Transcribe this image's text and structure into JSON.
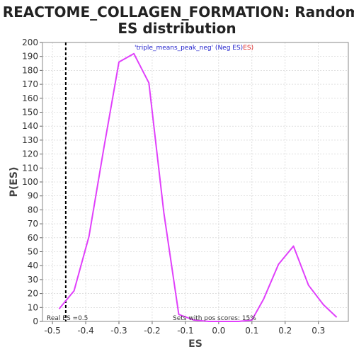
{
  "chart_data": {
    "type": "line",
    "title_lines": [
      "REACTOME_COLLAGEN_FORMATION: Random",
      "ES distribution"
    ],
    "xlabel": "ES",
    "ylabel": "P(ES)",
    "xlim": [
      -0.53,
      0.39
    ],
    "ylim": [
      0,
      200
    ],
    "x_ticks": [
      -0.5,
      -0.4,
      -0.3,
      -0.2,
      -0.1,
      0.0,
      0.1,
      0.2,
      0.3
    ],
    "x_tick_labels": [
      "-0.5",
      "-0.4",
      "-0.3",
      "-0.2",
      "-0.1",
      "0.0",
      "0.1",
      "0.2",
      "0.3"
    ],
    "y_ticks": [
      0,
      10,
      20,
      30,
      40,
      50,
      60,
      70,
      80,
      90,
      100,
      110,
      120,
      130,
      140,
      150,
      160,
      170,
      180,
      190,
      200
    ],
    "grid": true,
    "series": [
      {
        "color": "#e040fb",
        "x": [
          -0.48,
          -0.435,
          -0.39,
          -0.345,
          -0.3,
          -0.255,
          -0.21,
          -0.165,
          -0.12,
          -0.075,
          -0.03,
          0.015,
          0.06,
          0.1,
          0.135,
          0.18,
          0.225,
          0.27,
          0.315,
          0.355
        ],
        "y": [
          9,
          22,
          61,
          125,
          186,
          192,
          171,
          78,
          5,
          1,
          0,
          0,
          0,
          1,
          16,
          41,
          54,
          26,
          12,
          3
        ]
      }
    ],
    "reference_line": {
      "x": -0.46,
      "style": "dashed",
      "color": "#000000"
    },
    "annotations": {
      "legend_name": "'triple_means_peak_neg' (Neg ES)",
      "legend_suffix": "ES)",
      "real_es": "Real ES =0.5",
      "pos_scores": "Sets with pos scores: 15%"
    },
    "colors": {
      "line": "#e040fb",
      "legend_name": "#2222cc",
      "legend_suffix": "#dd2222",
      "grid": "#cccccc"
    }
  }
}
